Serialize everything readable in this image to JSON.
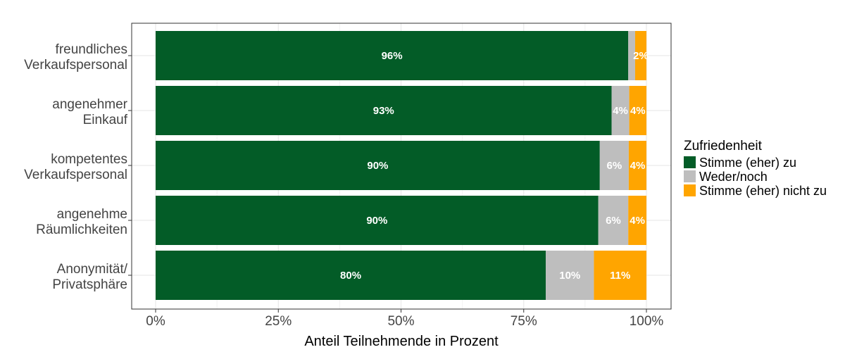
{
  "chart_data": {
    "type": "bar",
    "orientation": "horizontal",
    "stacked": true,
    "categories": [
      [
        "freundliches",
        "Verkaufspersonal"
      ],
      [
        "angenehmer",
        "Einkauf"
      ],
      [
        "kompetentes",
        "Verkaufspersonal"
      ],
      [
        "angenehme",
        "Räumlichkeiten"
      ],
      [
        "Anonymität/",
        "Privatsphäre"
      ]
    ],
    "series": [
      {
        "name": "Stimme (eher) zu",
        "color": "#035c27",
        "values": [
          96.3,
          92.9,
          90.5,
          90.2,
          79.5
        ]
      },
      {
        "name": "Weder/noch",
        "color": "#bebebe",
        "values": [
          1.4,
          3.6,
          5.9,
          6.1,
          9.8
        ]
      },
      {
        "name": "Stimme (eher) nicht zu",
        "color": "#ffa500",
        "values": [
          2.3,
          3.5,
          3.6,
          3.7,
          10.7
        ]
      }
    ],
    "value_labels": [
      [
        "96%",
        "",
        "2%"
      ],
      [
        "93%",
        "4%",
        "4%"
      ],
      [
        "90%",
        "6%",
        "4%"
      ],
      [
        "90%",
        "6%",
        "4%"
      ],
      [
        "80%",
        "10%",
        "11%"
      ]
    ],
    "xlabel": "Anteil Teilnehmende in Prozent",
    "xlim": [
      0,
      100
    ],
    "xticks": [
      0,
      25,
      50,
      75,
      100
    ],
    "xtick_labels": [
      "0%",
      "25%",
      "50%",
      "75%",
      "100%"
    ],
    "legend_title": "Zufriedenheit",
    "legend_position": "right",
    "grid": true
  }
}
